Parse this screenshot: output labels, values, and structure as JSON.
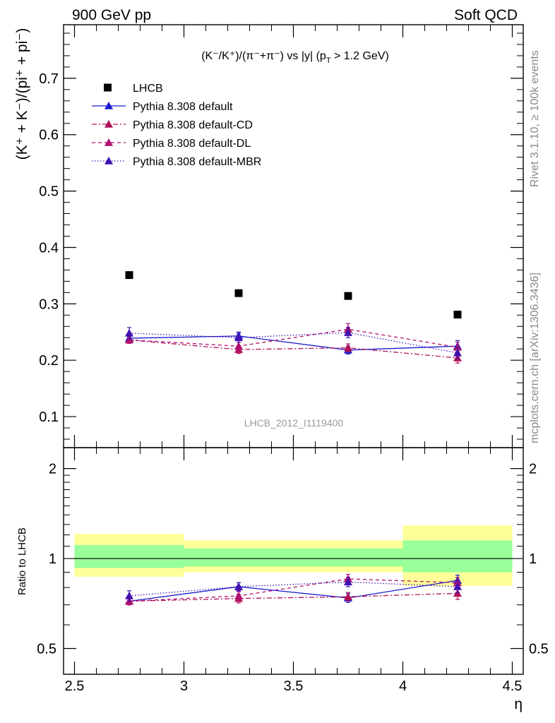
{
  "header": {
    "left": "900 GeV pp",
    "right": "Soft QCD"
  },
  "side_labels": {
    "top": "Rivet 3.1.10, ≥ 100k events",
    "bottom": "mcplots.cern.ch [arXiv:1306.3436]"
  },
  "watermark": "LHCB_2012_I1119400",
  "colors": {
    "lhcb": "#000000",
    "default": "#1a1acc",
    "cd": "#b0105a",
    "dl": "#b01070",
    "mbr": "#4010b0",
    "band_inner": "#99ff99",
    "band_outer": "#ffff99"
  },
  "chart_data": [
    {
      "type": "scatter",
      "title": "(K⁻/K⁺)/(π⁻+π⁻) vs |y| (p_T > 1.2 GeV)",
      "title_parts": {
        "main": "(K⁻/K⁺)/(π⁻+π⁻) vs |y| (p",
        "sub": "T",
        "tail": " > 1.2 GeV)"
      },
      "ylabel": "(K⁺ + K⁻)/(pi⁺ + pi⁻)",
      "xlim": [
        2.5,
        4.55
      ],
      "ylim": [
        0.045,
        0.795
      ],
      "y_ticks": [
        0.1,
        0.2,
        0.3,
        0.4,
        0.5,
        0.6,
        0.7
      ],
      "y_tick_labels": [
        "0.1",
        "0.2",
        "0.3",
        "0.4",
        "0.5",
        "0.6",
        "0.7"
      ],
      "legend_position": "top-left",
      "x": [
        2.75,
        3.25,
        3.75,
        4.25
      ],
      "series": [
        {
          "key": "lhcb",
          "name": "LHCB",
          "marker": "square",
          "line": "none",
          "values": [
            0.351,
            0.319,
            0.314,
            0.281
          ],
          "errors": [
            0,
            0,
            0,
            0
          ]
        },
        {
          "key": "default",
          "name": "Pythia 8.308 default",
          "marker": "triangle",
          "line": "solid",
          "values": [
            0.239,
            0.243,
            0.218,
            0.225
          ],
          "errors": [
            0.006,
            0.007,
            0.007,
            0.01
          ]
        },
        {
          "key": "cd",
          "name": "Pythia 8.308 default-CD",
          "marker": "triangle",
          "line": "dashdot",
          "values": [
            0.236,
            0.219,
            0.222,
            0.204
          ],
          "errors": [
            0.006,
            0.007,
            0.007,
            0.009
          ]
        },
        {
          "key": "dl",
          "name": "Pythia 8.308 default-DL",
          "marker": "triangle",
          "line": "dashed",
          "values": [
            0.236,
            0.225,
            0.255,
            0.223
          ],
          "errors": [
            0.006,
            0.007,
            0.01,
            0.009
          ]
        },
        {
          "key": "mbr",
          "name": "Pythia 8.308 default-MBR",
          "marker": "triangle",
          "line": "dotted",
          "values": [
            0.248,
            0.24,
            0.249,
            0.213
          ],
          "errors": [
            0.01,
            0.008,
            0.009,
            0.01
          ]
        }
      ]
    },
    {
      "type": "scatter",
      "ylabel": "Ratio to LHCB",
      "xlabel": "η",
      "xlim": [
        2.45,
        4.55
      ],
      "ylim": [
        0.41,
        2.35
      ],
      "log_y": true,
      "y_ticks": [
        0.5,
        1,
        2
      ],
      "y_tick_labels": [
        "0.5",
        "1",
        "2"
      ],
      "x_ticks": [
        2.5,
        3,
        3.5,
        4,
        4.5
      ],
      "x_tick_labels": [
        "2.5",
        "3",
        "3.5",
        "4",
        "4.5"
      ],
      "reference_line": 1,
      "bands": [
        {
          "x": [
            2.5,
            3.0
          ],
          "inner": [
            0.93,
            1.11
          ],
          "outer": [
            0.87,
            1.21
          ]
        },
        {
          "x": [
            3.0,
            3.5
          ],
          "inner": [
            0.94,
            1.08
          ],
          "outer": [
            0.9,
            1.15
          ]
        },
        {
          "x": [
            3.5,
            4.0
          ],
          "inner": [
            0.94,
            1.08
          ],
          "outer": [
            0.9,
            1.15
          ]
        },
        {
          "x": [
            4.0,
            4.5
          ],
          "inner": [
            0.9,
            1.15
          ],
          "outer": [
            0.81,
            1.29
          ]
        }
      ],
      "x": [
        2.75,
        3.25,
        3.75,
        4.25
      ],
      "series": [
        {
          "key": "default",
          "name": "Pythia 8.308 default",
          "line": "solid",
          "values": [
            0.72,
            0.805,
            0.738,
            0.845
          ],
          "errors": [
            0.02,
            0.025,
            0.025,
            0.035
          ]
        },
        {
          "key": "cd",
          "name": "Pythia 8.308 default-CD",
          "line": "dashdot",
          "values": [
            0.72,
            0.735,
            0.745,
            0.765
          ],
          "errors": [
            0.02,
            0.025,
            0.025,
            0.035
          ]
        },
        {
          "key": "dl",
          "name": "Pythia 8.308 default-DL",
          "line": "dashed",
          "values": [
            0.72,
            0.75,
            0.855,
            0.83
          ],
          "errors": [
            0.02,
            0.025,
            0.03,
            0.035
          ]
        },
        {
          "key": "mbr",
          "name": "Pythia 8.308 default-MBR",
          "line": "dotted",
          "values": [
            0.75,
            0.805,
            0.835,
            0.805
          ],
          "errors": [
            0.03,
            0.025,
            0.03,
            0.035
          ]
        }
      ]
    }
  ]
}
